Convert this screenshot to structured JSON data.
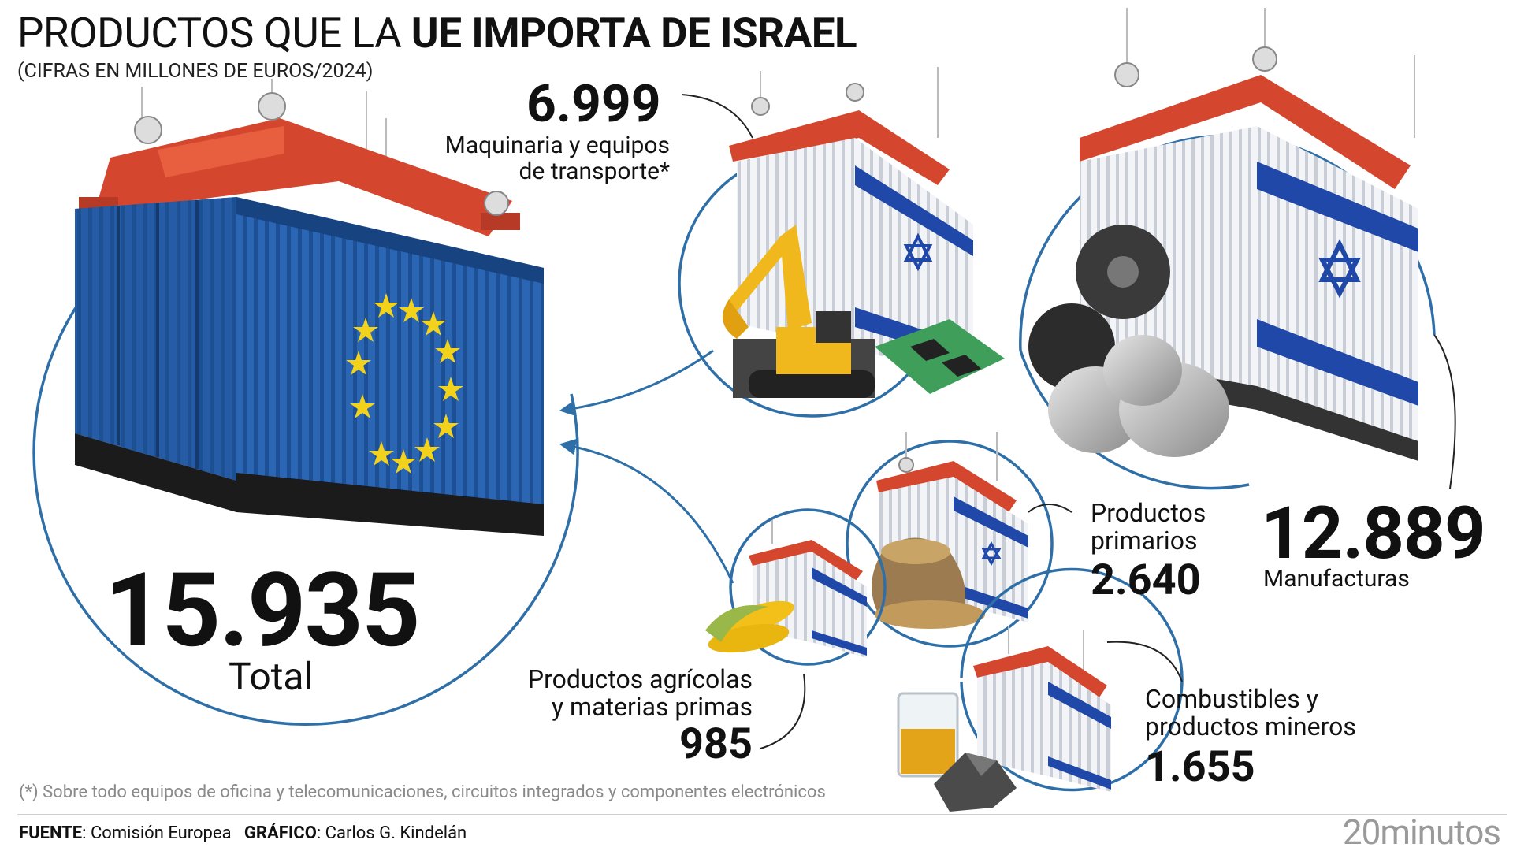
{
  "header": {
    "title_prefix": "PRODUCTOS QUE LA ",
    "title_bold": "UE IMPORTA DE ISRAEL",
    "subtitle": "(CIFRAS EN MILLONES DE EUROS/2024)"
  },
  "total": {
    "value": "15.935",
    "label": "Total"
  },
  "categories": {
    "maquinaria": {
      "value": "6.999",
      "label_line1": "Maquinaria y equipos",
      "label_line2": "de transporte*"
    },
    "manufacturas": {
      "value": "12.889",
      "label": "Manufacturas"
    },
    "primarios": {
      "label_line1": "Productos",
      "label_line2": "primarios",
      "value": "2.640"
    },
    "agricolas": {
      "label_line1": "Productos agrícolas",
      "label_line2": "y materias primas",
      "value": "985"
    },
    "combustibles": {
      "label_line1": "Combustibles y",
      "label_line2": "productos mineros",
      "value": "1.655"
    }
  },
  "footer": {
    "note": "(*) Sobre todo equipos de oficina y telecomunicaciones, circuitos integrados y componentes electrónicos",
    "source_label": "FUENTE",
    "source_value": ": Comisión Europea",
    "graphic_label": "GRÁFICO",
    "graphic_value": ": Carlos G. Kindelán",
    "brand_num": "20",
    "brand_word": "minutos"
  },
  "colors": {
    "ring": "#2f6fa8",
    "eu_blue": "#1f5aa8",
    "eu_star": "#f3d21b",
    "crane": "#c9432c",
    "israel_blue": "#2048a8"
  },
  "icons": [
    "eu-container-icon",
    "israel-container-icon",
    "excavator-icon",
    "circuit-board-icon",
    "gears-icon",
    "grain-sack-icon",
    "corn-icon",
    "oil-beaker-icon",
    "coal-rock-icon"
  ]
}
